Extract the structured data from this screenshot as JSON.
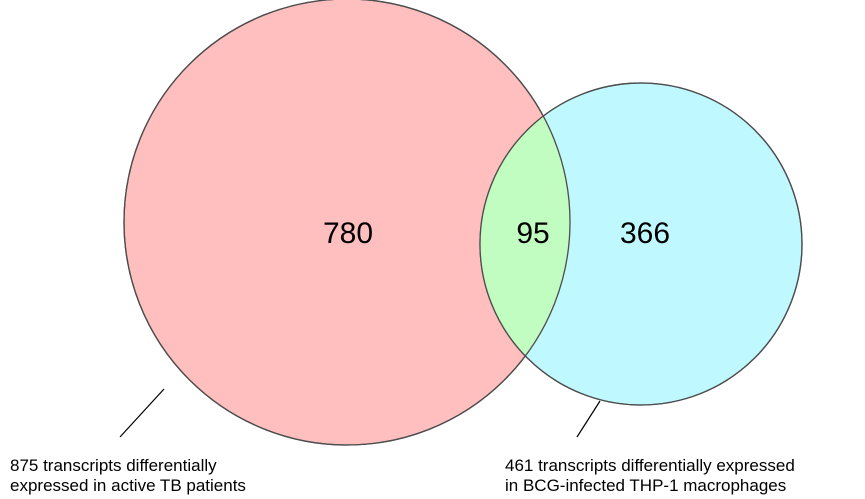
{
  "colors": {
    "left_fill": "#ffbfbf",
    "right_fill": "#bff9ff",
    "overlap_fill": "#c1fcc1",
    "outline": "#4d4d4d"
  },
  "sets": {
    "left": {
      "only_count": "780",
      "caption_line1": "875 transcripts differentially",
      "caption_line2": "expressed in active TB patients"
    },
    "overlap": {
      "count": "95"
    },
    "right": {
      "only_count": "366",
      "caption_line1": "461 transcripts differentially expressed",
      "caption_line2": "in BCG-infected THP-1 macrophages"
    }
  }
}
